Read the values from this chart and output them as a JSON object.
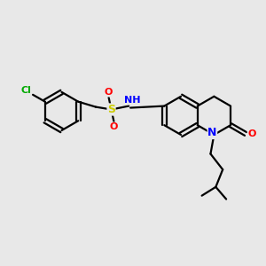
{
  "background_color": "#e8e8e8",
  "bond_color": "#000000",
  "atom_colors": {
    "Cl": "#00aa00",
    "S": "#cccc00",
    "O": "#ff0000",
    "N": "#0000ff",
    "C": "#000000"
  },
  "figsize": [
    3.0,
    3.0
  ],
  "dpi": 100
}
